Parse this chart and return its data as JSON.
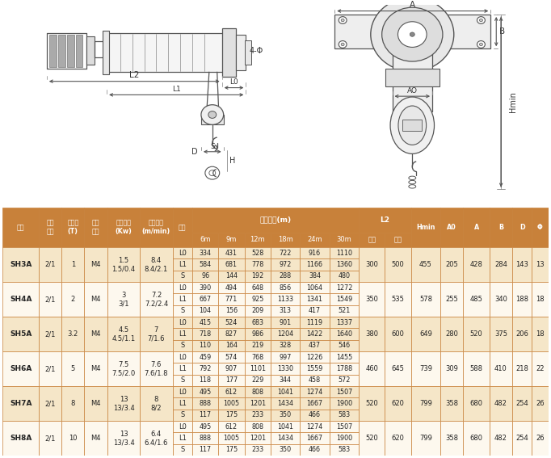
{
  "header_bg": "#c8813a",
  "header_text_color": "#ffffff",
  "row_bg_odd": "#f5e6c8",
  "row_bg_even": "#fdf8ee",
  "border_color": "#c8813a",
  "col_names": [
    "型号",
    "滑轮\n倍率",
    "起重量\n(T)",
    "工作\n级别",
    "起升功率\n(Kw)",
    "起升速度\n(m/min)",
    "尺寸",
    "6m",
    "9m",
    "12m",
    "18m",
    "24m",
    "30m",
    "单速",
    "双速",
    "Hmin",
    "A0",
    "A",
    "B",
    "D",
    "Φ"
  ],
  "cw_raw": [
    5.5,
    3.5,
    3.5,
    3.5,
    5,
    5,
    3,
    4,
    4,
    4,
    4.5,
    4.5,
    4.5,
    4,
    4,
    4.5,
    3.5,
    4,
    3.5,
    3,
    2.5
  ],
  "rows": [
    {
      "model": "SH3A",
      "pulley": "2/1",
      "capacity": "1",
      "grade": "M4",
      "power": "1.5\n1.5/0.4",
      "speed": "8.4\n8.4/2.1",
      "lines": [
        {
          "size": "L0",
          "v6": "334",
          "v9": "431",
          "v12": "528",
          "v18": "722",
          "v24": "916",
          "v30": "1110"
        },
        {
          "size": "L1",
          "v6": "584",
          "v9": "681",
          "v12": "778",
          "v18": "972",
          "v24": "1166",
          "v30": "1360"
        },
        {
          "size": "S",
          "v6": "96",
          "v9": "144",
          "v12": "192",
          "v18": "288",
          "v24": "384",
          "v30": "480"
        }
      ],
      "l2_single": "300",
      "l2_double": "500",
      "hmin": "455",
      "a0": "205",
      "a": "428",
      "b": "284",
      "d": "143",
      "phi": "13"
    },
    {
      "model": "SH4A",
      "pulley": "2/1",
      "capacity": "2",
      "grade": "M4",
      "power": "3\n3/1",
      "speed": "7.2\n7.2/2.4",
      "lines": [
        {
          "size": "L0",
          "v6": "390",
          "v9": "494",
          "v12": "648",
          "v18": "856",
          "v24": "1064",
          "v30": "1272"
        },
        {
          "size": "L1",
          "v6": "667",
          "v9": "771",
          "v12": "925",
          "v18": "1133",
          "v24": "1341",
          "v30": "1549"
        },
        {
          "size": "S",
          "v6": "104",
          "v9": "156",
          "v12": "209",
          "v18": "313",
          "v24": "417",
          "v30": "521"
        }
      ],
      "l2_single": "350",
      "l2_double": "535",
      "hmin": "578",
      "a0": "255",
      "a": "485",
      "b": "340",
      "d": "188",
      "phi": "18"
    },
    {
      "model": "SH5A",
      "pulley": "2/1",
      "capacity": "3.2",
      "grade": "M4",
      "power": "4.5\n4.5/1.1",
      "speed": "7\n7/1.6",
      "lines": [
        {
          "size": "L0",
          "v6": "415",
          "v9": "524",
          "v12": "683",
          "v18": "901",
          "v24": "1119",
          "v30": "1337"
        },
        {
          "size": "L1",
          "v6": "718",
          "v9": "827",
          "v12": "986",
          "v18": "1204",
          "v24": "1422",
          "v30": "1640"
        },
        {
          "size": "S",
          "v6": "110",
          "v9": "164",
          "v12": "219",
          "v18": "328",
          "v24": "437",
          "v30": "546"
        }
      ],
      "l2_single": "380",
      "l2_double": "600",
      "hmin": "649",
      "a0": "280",
      "a": "520",
      "b": "375",
      "d": "206",
      "phi": "18"
    },
    {
      "model": "SH6A",
      "pulley": "2/1",
      "capacity": "5",
      "grade": "M4",
      "power": "7.5\n7.5/2.0",
      "speed": "7.6\n7.6/1.8",
      "lines": [
        {
          "size": "L0",
          "v6": "459",
          "v9": "574",
          "v12": "768",
          "v18": "997",
          "v24": "1226",
          "v30": "1455"
        },
        {
          "size": "L1",
          "v6": "792",
          "v9": "907",
          "v12": "1101",
          "v18": "1330",
          "v24": "1559",
          "v30": "1788"
        },
        {
          "size": "S",
          "v6": "118",
          "v9": "177",
          "v12": "229",
          "v18": "344",
          "v24": "458",
          "v30": "572"
        }
      ],
      "l2_single": "460",
      "l2_double": "645",
      "hmin": "739",
      "a0": "309",
      "a": "588",
      "b": "410",
      "d": "218",
      "phi": "22"
    },
    {
      "model": "SH7A",
      "pulley": "2/1",
      "capacity": "8",
      "grade": "M4",
      "power": "13\n13/3.4",
      "speed": "8\n8/2",
      "lines": [
        {
          "size": "L0",
          "v6": "495",
          "v9": "612",
          "v12": "808",
          "v18": "1041",
          "v24": "1274",
          "v30": "1507"
        },
        {
          "size": "L1",
          "v6": "888",
          "v9": "1005",
          "v12": "1201",
          "v18": "1434",
          "v24": "1667",
          "v30": "1900"
        },
        {
          "size": "S",
          "v6": "117",
          "v9": "175",
          "v12": "233",
          "v18": "350",
          "v24": "466",
          "v30": "583"
        }
      ],
      "l2_single": "520",
      "l2_double": "620",
      "hmin": "799",
      "a0": "358",
      "a": "680",
      "b": "482",
      "d": "254",
      "phi": "26"
    },
    {
      "model": "SH8A",
      "pulley": "2/1",
      "capacity": "10",
      "grade": "M4",
      "power": "13\n13/3.4",
      "speed": "6.4\n6.4/1.6",
      "lines": [
        {
          "size": "L0",
          "v6": "495",
          "v9": "612",
          "v12": "808",
          "v18": "1041",
          "v24": "1274",
          "v30": "1507"
        },
        {
          "size": "L1",
          "v6": "888",
          "v9": "1005",
          "v12": "1201",
          "v18": "1434",
          "v24": "1667",
          "v30": "1900"
        },
        {
          "size": "S",
          "v6": "117",
          "v9": "175",
          "v12": "233",
          "v18": "350",
          "v24": "466",
          "v30": "583"
        }
      ],
      "l2_single": "520",
      "l2_double": "620",
      "hmin": "799",
      "a0": "358",
      "a": "680",
      "b": "482",
      "d": "254",
      "phi": "26"
    }
  ],
  "diagram_line_color": "#555555",
  "diagram_bg": "#ffffff"
}
